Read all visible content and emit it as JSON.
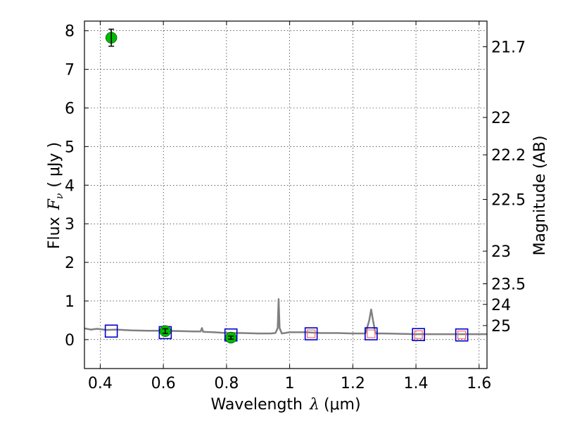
{
  "chart_data": {
    "type": "scatter",
    "xlabel_prefix": "Wavelength",
    "xlabel_math": "λ",
    "xlabel_unit": "(μm)",
    "ylabel_prefix": "Flux",
    "ylabel_math": "F",
    "ylabel_math_sub": "ν",
    "ylabel_unit": "( μJy )",
    "y2label": "Magnitude (AB)",
    "xlim": [
      0.35,
      1.625
    ],
    "ylim": [
      -0.75,
      8.25
    ],
    "grid": true,
    "x_ticks": [
      0.4,
      0.6,
      0.8,
      1.0,
      1.2,
      1.4,
      1.6
    ],
    "x_tick_labels": [
      "0.4",
      "0.6",
      "0.8",
      "1",
      "1.2",
      "1.4",
      "1.6"
    ],
    "y_ticks": [
      0,
      1,
      2,
      3,
      4,
      5,
      6,
      7,
      8
    ],
    "y_tick_labels": [
      "0",
      "1",
      "2",
      "3",
      "4",
      "5",
      "6",
      "7",
      "8"
    ],
    "mag_ticks": [
      {
        "label": "21.7",
        "mag": 21.7
      },
      {
        "label": "22",
        "mag": 22.0
      },
      {
        "label": "22.2",
        "mag": 22.2
      },
      {
        "label": "22.5",
        "mag": 22.5
      },
      {
        "label": "23",
        "mag": 23.0
      },
      {
        "label": "23.5",
        "mag": 23.5
      },
      {
        "label": "24",
        "mag": 24.0
      },
      {
        "label": "25",
        "mag": 25.0
      }
    ],
    "spectrum": {
      "color": "#808080",
      "x": [
        0.35,
        0.37,
        0.39,
        0.42,
        0.45,
        0.5,
        0.55,
        0.6,
        0.65,
        0.7,
        0.718,
        0.722,
        0.726,
        0.73,
        0.76,
        0.8,
        0.85,
        0.9,
        0.94,
        0.955,
        0.962,
        0.965,
        0.968,
        0.975,
        1.0,
        1.05,
        1.1,
        1.15,
        1.2,
        1.24,
        1.252,
        1.258,
        1.264,
        1.272,
        1.3,
        1.35,
        1.4,
        1.45,
        1.5,
        1.55,
        1.6,
        1.625
      ],
      "y": [
        0.29,
        0.26,
        0.28,
        0.25,
        0.26,
        0.24,
        0.23,
        0.23,
        0.22,
        0.21,
        0.21,
        0.3,
        0.2,
        0.2,
        0.19,
        0.17,
        0.17,
        0.16,
        0.16,
        0.17,
        0.3,
        1.05,
        0.3,
        0.16,
        0.19,
        0.19,
        0.17,
        0.17,
        0.16,
        0.16,
        0.5,
        0.78,
        0.5,
        0.16,
        0.16,
        0.15,
        0.14,
        0.14,
        0.14,
        0.14,
        0.14,
        0.14
      ]
    },
    "observed": {
      "color": "#00bb00",
      "points": [
        {
          "x": 0.435,
          "y": 7.82,
          "err": 0.22
        },
        {
          "x": 0.606,
          "y": 0.22,
          "err": 0.06
        },
        {
          "x": 0.814,
          "y": 0.05,
          "err": 0.04
        }
      ]
    },
    "model_bands": {
      "color": "#0000cc",
      "points": [
        {
          "x": 0.435,
          "y": 0.22
        },
        {
          "x": 0.606,
          "y": 0.18
        },
        {
          "x": 0.814,
          "y": 0.12
        },
        {
          "x": 1.068,
          "y": 0.15
        },
        {
          "x": 1.258,
          "y": 0.15
        },
        {
          "x": 1.408,
          "y": 0.13
        },
        {
          "x": 1.545,
          "y": 0.12
        }
      ]
    },
    "model_ir": {
      "color": "#ff6666",
      "points": [
        {
          "x": 1.068,
          "y": 0.15
        },
        {
          "x": 1.258,
          "y": 0.15
        },
        {
          "x": 1.408,
          "y": 0.13
        },
        {
          "x": 1.545,
          "y": 0.12
        }
      ]
    }
  }
}
